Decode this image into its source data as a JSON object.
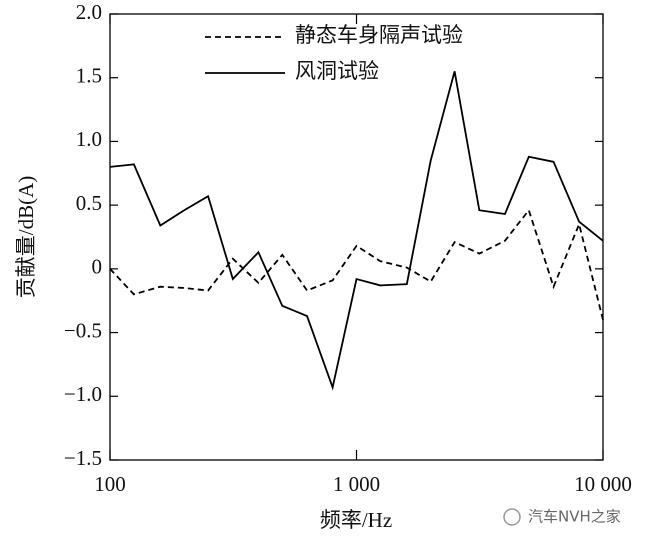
{
  "chart_data": {
    "type": "line",
    "xlabel": "频率/Hz",
    "ylabel": "贡献量/dB(A)",
    "xscale": "log",
    "xlim": [
      100,
      10000
    ],
    "xticks": [
      100,
      {
        "value": 1000,
        "label": "1 000"
      },
      {
        "value": 10000,
        "label": "10 000"
      }
    ],
    "ylim": [
      -1.5,
      2.0
    ],
    "yticks": [
      {
        "value": 2.0,
        "label": "2.0"
      },
      {
        "value": 1.5,
        "label": "1.5"
      },
      {
        "value": 1.0,
        "label": "1.0"
      },
      {
        "value": 0.5,
        "label": "0.5"
      },
      0,
      {
        "value": -0.5,
        "label": "−0.5"
      },
      {
        "value": -1.0,
        "label": "−1.0"
      },
      {
        "value": -1.5,
        "label": "−1.5"
      }
    ],
    "x": [
      100,
      125,
      160,
      200,
      250,
      315,
      400,
      500,
      630,
      800,
      1000,
      1250,
      1600,
      2000,
      2500,
      3150,
      4000,
      5000,
      6300,
      8000,
      10000
    ],
    "series": [
      {
        "name": "静态车身隔声试验",
        "color": "#000000",
        "dash": "dashed",
        "values": [
          0.0,
          -0.2,
          -0.14,
          -0.15,
          -0.17,
          0.08,
          -0.11,
          0.11,
          -0.17,
          -0.09,
          0.18,
          0.06,
          0.01,
          -0.1,
          0.21,
          0.12,
          0.22,
          0.46,
          -0.14,
          0.35,
          -0.4
        ]
      },
      {
        "name": "风洞试验",
        "color": "#000000",
        "dash": "solid",
        "values": [
          0.8,
          0.82,
          0.34,
          0.46,
          0.57,
          -0.08,
          0.13,
          -0.29,
          -0.37,
          -0.93,
          -0.08,
          -0.13,
          -0.12,
          0.85,
          1.55,
          0.46,
          0.43,
          0.88,
          0.84,
          0.37,
          0.22
        ]
      }
    ],
    "legend": "upper right",
    "watermark": "汽车NVH之家"
  }
}
